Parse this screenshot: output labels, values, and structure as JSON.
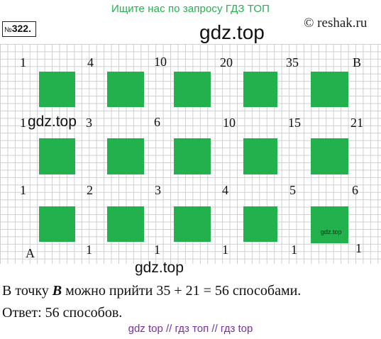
{
  "banner": "Ищите нас по запросу ГДЗ ТОП",
  "task_number": {
    "prefix": "№",
    "value": "322."
  },
  "site_credit": "© reshak.ru",
  "watermarks": {
    "title_big": "gdz.top",
    "left_mid": "gdz.top",
    "bottom": "gdz.top",
    "cell_small": "gdz.top"
  },
  "grid_numbers": {
    "row1": [
      "1",
      "4",
      "10",
      "20",
      "35",
      "B"
    ],
    "row2": [
      "1",
      "3",
      "6",
      "10",
      "15",
      "21"
    ],
    "row3": [
      "1",
      "2",
      "3",
      "4",
      "5",
      "6"
    ],
    "row4": [
      "A",
      "1",
      "1",
      "1",
      "1",
      "1"
    ]
  },
  "answer_lines": {
    "line1_prefix": "В точку ",
    "line1_point": "B",
    "line1_suffix": " можно прийти 35 + 21 = 56 способами.",
    "line2": "Ответ: 56 способов."
  },
  "bottom_links": "gdz top  //  гдз топ  //  гдз top",
  "colors": {
    "cell_green": "#22b14c",
    "banner_green": "#22b14c",
    "link_purple": "#7a2fa3"
  }
}
